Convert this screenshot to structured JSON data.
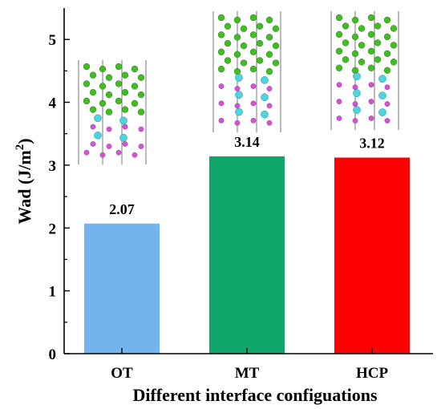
{
  "chart_data": {
    "type": "bar",
    "categories": [
      "OT",
      "MT",
      "HCP"
    ],
    "values": [
      2.07,
      3.14,
      3.12
    ],
    "data_labels": [
      "2.07",
      "3.14",
      "3.12"
    ],
    "bar_colors": [
      "#74b4ee",
      "#10a56b",
      "#ff0000"
    ],
    "xlabel": "Different interface configuations",
    "ylabel_main": "Wad (J/m",
    "ylabel_sup": "2",
    "ylabel_tail": ")",
    "ylim": [
      0,
      5.5
    ],
    "yticks": [
      0,
      1,
      2,
      3,
      4,
      5
    ],
    "ytick_labels": [
      "0",
      "1",
      "2",
      "3",
      "4",
      "5"
    ],
    "grid": false,
    "legend": "none"
  },
  "atom_colors": {
    "green": "#3fbf1f",
    "cyan": "#49d6e0",
    "magenta": "#d94fd9"
  },
  "structure_insets": [
    {
      "name": "OT-structure",
      "category": "OT"
    },
    {
      "name": "MT-structure",
      "category": "MT"
    },
    {
      "name": "HCP-structure",
      "category": "HCP"
    }
  ]
}
